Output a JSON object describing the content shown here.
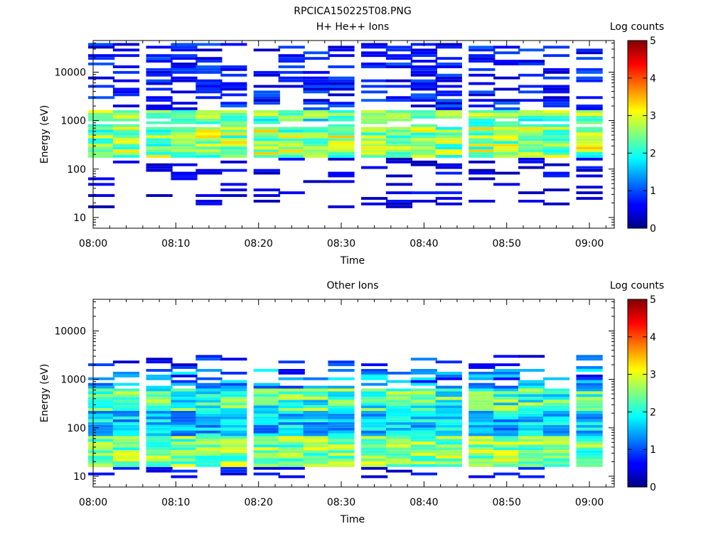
{
  "figure": {
    "title": "RPCICA150225T08.PNG"
  },
  "chart_data": [
    {
      "type": "heatmap",
      "title": "H+ He++ Ions",
      "xlabel": "Time",
      "ylabel": "Energy (eV)",
      "y_scale": "log",
      "ylim": [
        6,
        45000
      ],
      "xlim": [
        "08:00",
        "09:03"
      ],
      "x_ticks": [
        "08:00",
        "08:10",
        "08:20",
        "08:30",
        "08:40",
        "08:50",
        "09:00"
      ],
      "y_ticks": [
        "10",
        "100",
        "1000",
        "10000"
      ],
      "colorbar": {
        "label": "Log counts",
        "range": [
          0,
          5
        ],
        "ticks": [
          "0",
          "1",
          "2",
          "3",
          "4",
          "5"
        ]
      },
      "time_bins": [
        "08:01",
        "08:04",
        "08:08",
        "08:11",
        "08:14",
        "08:17",
        "08:21",
        "08:24",
        "08:27",
        "08:30",
        "08:34",
        "08:37",
        "08:40",
        "08:43",
        "08:47",
        "08:50",
        "08:53",
        "08:56",
        "09:00"
      ],
      "grid": false,
      "description_of_values": "log10 counts per energy/time bin",
      "dominant_band_energy_eV": [
        150,
        1500
      ],
      "peak_log_counts": 3.9,
      "peak_time": "08:45",
      "peak_energy_eV": 380
    },
    {
      "type": "heatmap",
      "title": "Other Ions",
      "xlabel": "Time",
      "ylabel": "Energy (eV)",
      "y_scale": "log",
      "ylim": [
        6,
        45000
      ],
      "xlim": [
        "08:00",
        "09:03"
      ],
      "x_ticks": [
        "08:00",
        "08:10",
        "08:20",
        "08:30",
        "08:40",
        "08:50",
        "09:00"
      ],
      "y_ticks": [
        "10",
        "100",
        "1000",
        "10000"
      ],
      "colorbar": {
        "label": "Log counts",
        "range": [
          0,
          5
        ],
        "ticks": [
          "0",
          "1",
          "2",
          "3",
          "4",
          "5"
        ]
      },
      "time_bins": [
        "08:01",
        "08:04",
        "08:08",
        "08:11",
        "08:14",
        "08:17",
        "08:21",
        "08:24",
        "08:27",
        "08:30",
        "08:34",
        "08:37",
        "08:40",
        "08:43",
        "08:47",
        "08:50",
        "08:53",
        "08:56",
        "09:00"
      ],
      "grid": false,
      "description_of_values": "log10 counts per energy/time bin",
      "dominant_band_energy_eV": [
        15,
        1500
      ],
      "peak_log_counts": 3.2,
      "peak_time": "08:30",
      "peak_energy_eV": 25
    }
  ]
}
